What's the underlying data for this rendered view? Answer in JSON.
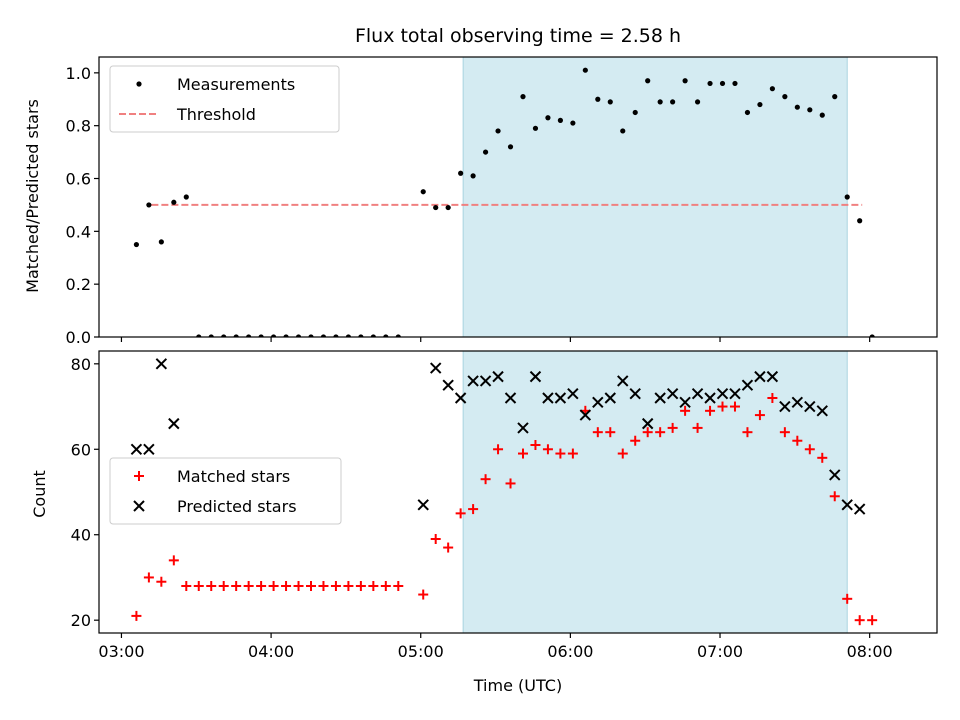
{
  "chart_data": [
    {
      "type": "scatter",
      "title": "Flux total observing time = 2.58 h",
      "xlabel": "",
      "ylabel": "Matched/Predicted stars",
      "xlim": [
        "02:51",
        "08:27"
      ],
      "ylim": [
        0,
        1.06
      ],
      "yticks": [
        0.0,
        0.2,
        0.4,
        0.6,
        0.8,
        1.0
      ],
      "ytick_labels": [
        "0.0",
        "0.2",
        "0.4",
        "0.6",
        "0.8",
        "1.0"
      ],
      "grid": false,
      "legend_position": "upper-left",
      "shaded_region": {
        "from": "05:17",
        "to": "07:51",
        "color": "#d4ebf2"
      },
      "threshold": {
        "name": "Threshold",
        "value": 0.5,
        "from": "03:12",
        "to": "07:57",
        "color": "#f08080",
        "style": "dashed"
      },
      "series": [
        {
          "name": "Measurements",
          "marker": "dot",
          "color": "#000000",
          "points": [
            [
              "03:06",
              0.35
            ],
            [
              "03:11",
              0.5
            ],
            [
              "03:16",
              0.36
            ],
            [
              "03:21",
              0.51
            ],
            [
              "03:26",
              0.53
            ],
            [
              "03:31",
              0.0
            ],
            [
              "03:36",
              0.0
            ],
            [
              "03:41",
              0.0
            ],
            [
              "03:46",
              0.0
            ],
            [
              "03:51",
              0.0
            ],
            [
              "03:56",
              0.0
            ],
            [
              "04:01",
              0.0
            ],
            [
              "04:06",
              0.0
            ],
            [
              "04:11",
              0.0
            ],
            [
              "04:16",
              0.0
            ],
            [
              "04:21",
              0.0
            ],
            [
              "04:26",
              0.0
            ],
            [
              "04:31",
              0.0
            ],
            [
              "04:36",
              0.0
            ],
            [
              "04:41",
              0.0
            ],
            [
              "04:46",
              0.0
            ],
            [
              "04:51",
              0.0
            ],
            [
              "05:01",
              0.55
            ],
            [
              "05:06",
              0.49
            ],
            [
              "05:11",
              0.49
            ],
            [
              "05:16",
              0.62
            ],
            [
              "05:21",
              0.61
            ],
            [
              "05:26",
              0.7
            ],
            [
              "05:31",
              0.78
            ],
            [
              "05:36",
              0.72
            ],
            [
              "05:41",
              0.91
            ],
            [
              "05:46",
              0.79
            ],
            [
              "05:51",
              0.83
            ],
            [
              "05:56",
              0.82
            ],
            [
              "06:01",
              0.81
            ],
            [
              "06:06",
              1.01
            ],
            [
              "06:11",
              0.9
            ],
            [
              "06:16",
              0.89
            ],
            [
              "06:21",
              0.78
            ],
            [
              "06:26",
              0.85
            ],
            [
              "06:31",
              0.97
            ],
            [
              "06:36",
              0.89
            ],
            [
              "06:41",
              0.89
            ],
            [
              "06:46",
              0.97
            ],
            [
              "06:51",
              0.89
            ],
            [
              "06:56",
              0.96
            ],
            [
              "07:01",
              0.96
            ],
            [
              "07:06",
              0.96
            ],
            [
              "07:11",
              0.85
            ],
            [
              "07:16",
              0.88
            ],
            [
              "07:21",
              0.94
            ],
            [
              "07:26",
              0.91
            ],
            [
              "07:31",
              0.87
            ],
            [
              "07:36",
              0.86
            ],
            [
              "07:41",
              0.84
            ],
            [
              "07:46",
              0.91
            ],
            [
              "07:51",
              0.53
            ],
            [
              "07:56",
              0.44
            ],
            [
              "08:01",
              0.0
            ]
          ]
        }
      ]
    },
    {
      "type": "scatter",
      "title": "",
      "xlabel": "Time (UTC)",
      "ylabel": "Count",
      "xlim": [
        "02:51",
        "08:27"
      ],
      "ylim": [
        17,
        83
      ],
      "yticks": [
        20,
        40,
        60,
        80
      ],
      "ytick_labels": [
        "20",
        "40",
        "60",
        "80"
      ],
      "xticks": [
        "03:00",
        "04:00",
        "05:00",
        "06:00",
        "07:00",
        "08:00"
      ],
      "xtick_labels": [
        "03:00",
        "04:00",
        "05:00",
        "06:00",
        "07:00",
        "08:00"
      ],
      "grid": false,
      "legend_position": "center-left",
      "shaded_region": {
        "from": "05:17",
        "to": "07:51",
        "color": "#d4ebf2"
      },
      "series": [
        {
          "name": "Matched stars",
          "marker": "plus",
          "color": "#ff0000",
          "points": [
            [
              "03:06",
              21
            ],
            [
              "03:11",
              30
            ],
            [
              "03:16",
              29
            ],
            [
              "03:21",
              34
            ],
            [
              "03:26",
              28
            ],
            [
              "03:31",
              28
            ],
            [
              "03:36",
              28
            ],
            [
              "03:41",
              28
            ],
            [
              "03:46",
              28
            ],
            [
              "03:51",
              28
            ],
            [
              "03:56",
              28
            ],
            [
              "04:01",
              28
            ],
            [
              "04:06",
              28
            ],
            [
              "04:11",
              28
            ],
            [
              "04:16",
              28
            ],
            [
              "04:21",
              28
            ],
            [
              "04:26",
              28
            ],
            [
              "04:31",
              28
            ],
            [
              "04:36",
              28
            ],
            [
              "04:41",
              28
            ],
            [
              "04:46",
              28
            ],
            [
              "04:51",
              28
            ],
            [
              "05:01",
              26
            ],
            [
              "05:06",
              39
            ],
            [
              "05:11",
              37
            ],
            [
              "05:16",
              45
            ],
            [
              "05:21",
              46
            ],
            [
              "05:26",
              53
            ],
            [
              "05:31",
              60
            ],
            [
              "05:36",
              52
            ],
            [
              "05:41",
              59
            ],
            [
              "05:46",
              61
            ],
            [
              "05:51",
              60
            ],
            [
              "05:56",
              59
            ],
            [
              "06:01",
              59
            ],
            [
              "06:06",
              69
            ],
            [
              "06:11",
              64
            ],
            [
              "06:16",
              64
            ],
            [
              "06:21",
              59
            ],
            [
              "06:26",
              62
            ],
            [
              "06:31",
              64
            ],
            [
              "06:36",
              64
            ],
            [
              "06:41",
              65
            ],
            [
              "06:46",
              69
            ],
            [
              "06:51",
              65
            ],
            [
              "06:56",
              69
            ],
            [
              "07:01",
              70
            ],
            [
              "07:06",
              70
            ],
            [
              "07:11",
              64
            ],
            [
              "07:16",
              68
            ],
            [
              "07:21",
              72
            ],
            [
              "07:26",
              64
            ],
            [
              "07:31",
              62
            ],
            [
              "07:36",
              60
            ],
            [
              "07:41",
              58
            ],
            [
              "07:46",
              49
            ],
            [
              "07:51",
              25
            ],
            [
              "07:56",
              20
            ],
            [
              "08:01",
              20
            ]
          ]
        },
        {
          "name": "Predicted stars",
          "marker": "x",
          "color": "#000000",
          "points": [
            [
              "03:06",
              60
            ],
            [
              "03:11",
              60
            ],
            [
              "03:16",
              80
            ],
            [
              "03:21",
              66
            ],
            [
              "05:01",
              47
            ],
            [
              "05:06",
              79
            ],
            [
              "05:11",
              75
            ],
            [
              "05:16",
              72
            ],
            [
              "05:21",
              76
            ],
            [
              "05:26",
              76
            ],
            [
              "05:31",
              77
            ],
            [
              "05:36",
              72
            ],
            [
              "05:41",
              65
            ],
            [
              "05:46",
              77
            ],
            [
              "05:51",
              72
            ],
            [
              "05:56",
              72
            ],
            [
              "06:01",
              73
            ],
            [
              "06:06",
              68
            ],
            [
              "06:11",
              71
            ],
            [
              "06:16",
              72
            ],
            [
              "06:21",
              76
            ],
            [
              "06:26",
              73
            ],
            [
              "06:31",
              66
            ],
            [
              "06:36",
              72
            ],
            [
              "06:41",
              73
            ],
            [
              "06:46",
              71
            ],
            [
              "06:51",
              73
            ],
            [
              "06:56",
              72
            ],
            [
              "07:01",
              73
            ],
            [
              "07:06",
              73
            ],
            [
              "07:11",
              75
            ],
            [
              "07:16",
              77
            ],
            [
              "07:21",
              77
            ],
            [
              "07:26",
              70
            ],
            [
              "07:31",
              71
            ],
            [
              "07:36",
              70
            ],
            [
              "07:41",
              69
            ],
            [
              "07:46",
              54
            ],
            [
              "07:51",
              47
            ],
            [
              "07:56",
              46
            ]
          ]
        }
      ]
    }
  ]
}
